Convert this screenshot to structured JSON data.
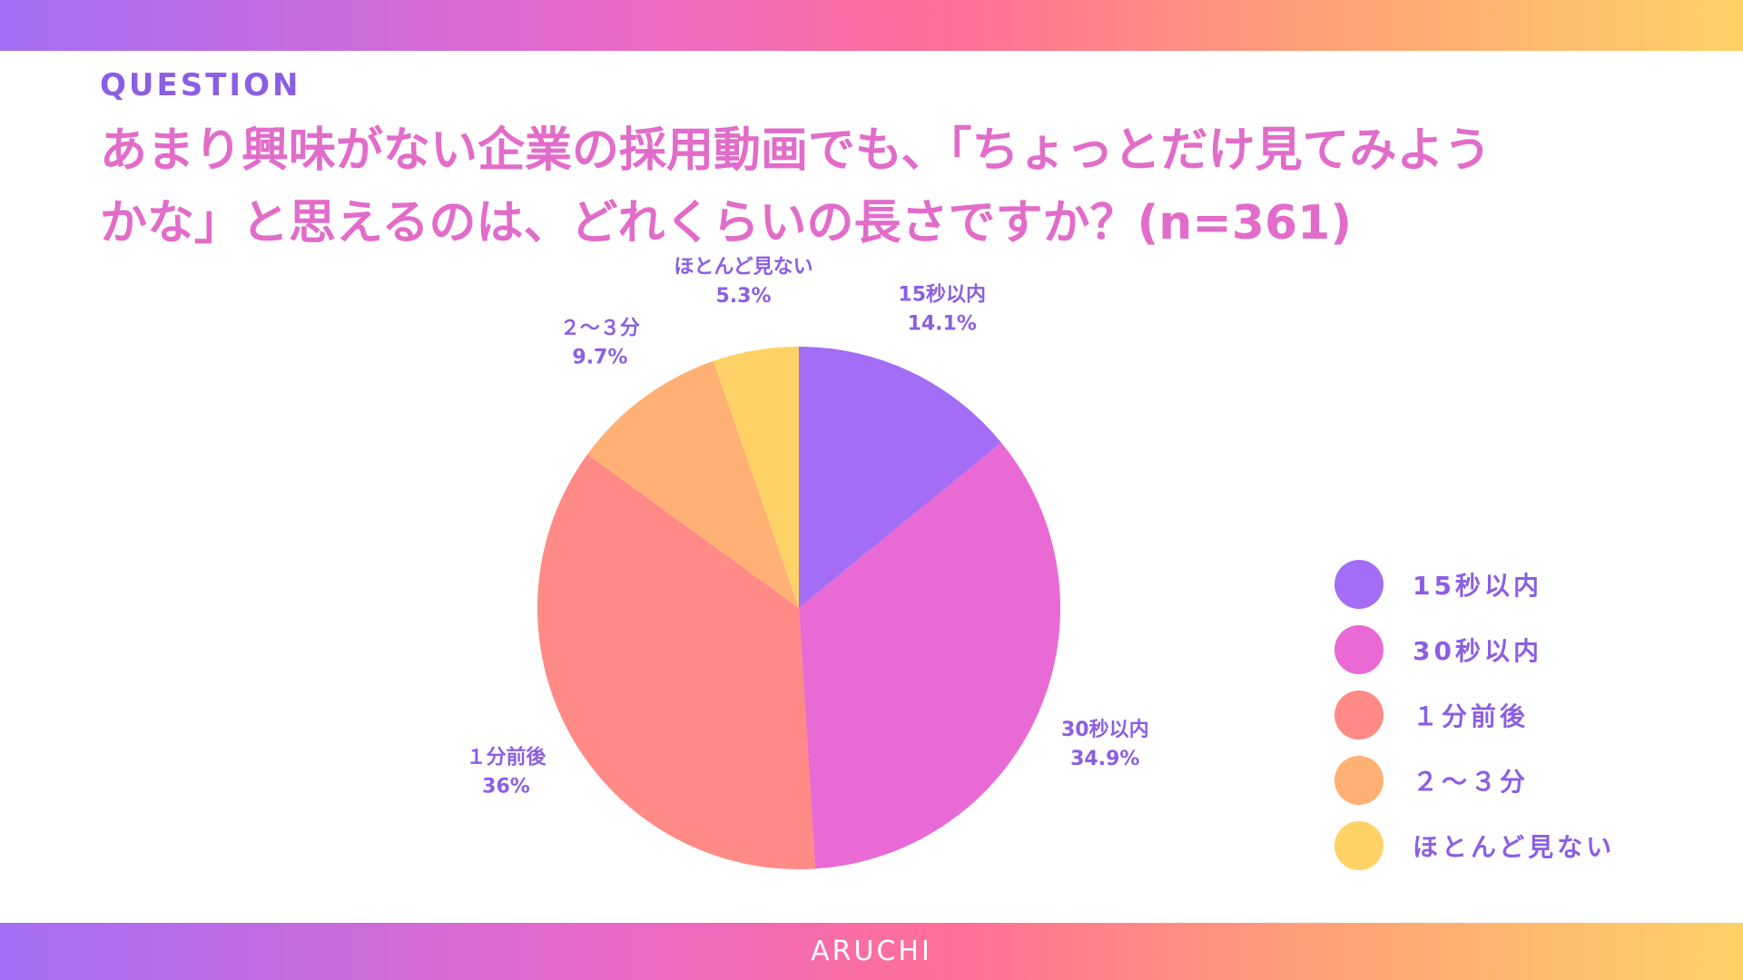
{
  "header": {
    "kicker": "QUESTION",
    "question_line1": "あまり興味がない企業の採用動画でも、「ちょっとだけ見てみよう",
    "question_line2": "かな」と思えるのは、どれくらいの長さですか？(n=361)"
  },
  "footer": {
    "brand": "ARUCHI"
  },
  "chart_data": {
    "type": "pie",
    "categories": [
      "15秒以内",
      "30秒以内",
      "１分前後",
      "２～３分",
      "ほとんど見ない"
    ],
    "values": [
      14.1,
      34.9,
      36,
      9.7,
      5.3
    ],
    "value_labels": [
      "14.1%",
      "34.9%",
      "36%",
      "9.7%",
      "5.3%"
    ],
    "colors": [
      "#a36ef5",
      "#e969d5",
      "#ff8a86",
      "#ffb075",
      "#fed266"
    ],
    "legend": {
      "placement": "right",
      "labels": [
        "15秒以内",
        "30秒以内",
        "１分前後",
        "２～３分",
        "ほとんど見ない"
      ]
    },
    "start_angle": "12 o'clock",
    "direction": "clockwise"
  }
}
